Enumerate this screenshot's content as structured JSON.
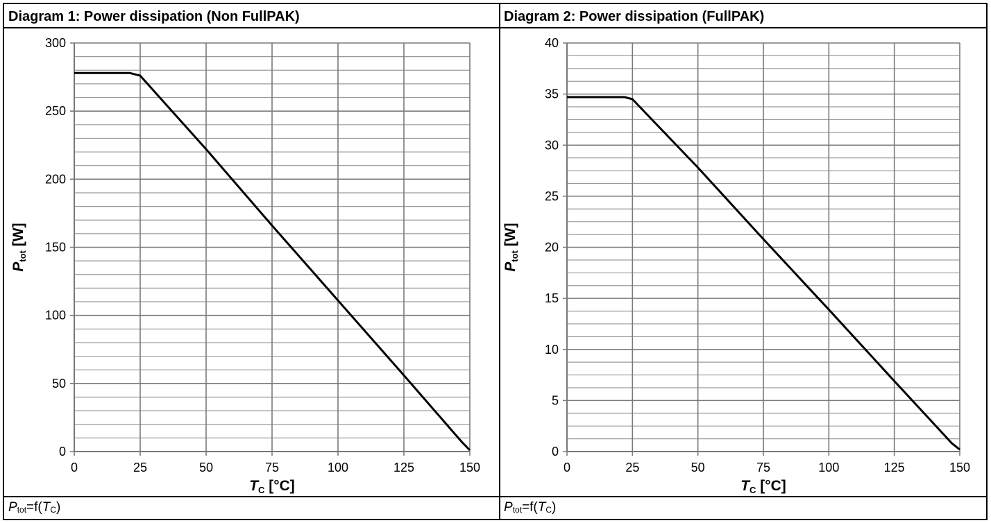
{
  "panels": [
    {
      "title": "Diagram 1: Power dissipation (Non FullPAK)",
      "caption": {
        "main": "P",
        "sub": "tot",
        "mid": "=f(",
        "var": "T",
        "varsub": "C",
        "end": ")"
      }
    },
    {
      "title": "Diagram 2: Power dissipation (FullPAK)",
      "caption": {
        "main": "P",
        "sub": "tot",
        "mid": "=f(",
        "var": "T",
        "varsub": "C",
        "end": ")"
      }
    }
  ],
  "chart_data": [
    {
      "type": "line",
      "title": "Diagram 1: Power dissipation (Non FullPAK)",
      "xlabel": {
        "main": "T",
        "sub": "C",
        "unit": " [°C]"
      },
      "ylabel": {
        "main": "P",
        "sub": "tot",
        "unit": " [W]"
      },
      "xlim": [
        0,
        150
      ],
      "ylim": [
        0,
        300
      ],
      "x_ticks": [
        0,
        25,
        50,
        75,
        100,
        125,
        150
      ],
      "y_ticks": [
        0,
        50,
        100,
        150,
        200,
        250,
        300
      ],
      "grid": true,
      "series": [
        {
          "x": [
            0,
            21,
            25,
            50,
            75,
            100,
            125,
            147,
            150
          ],
          "y": [
            278,
            278,
            276,
            222,
            166,
            111,
            56,
            7,
            1
          ]
        }
      ]
    },
    {
      "type": "line",
      "title": "Diagram 2: Power dissipation (FullPAK)",
      "xlabel": {
        "main": "T",
        "sub": "C",
        "unit": " [°C]"
      },
      "ylabel": {
        "main": "P",
        "sub": "tot",
        "unit": " [W]"
      },
      "xlim": [
        0,
        150
      ],
      "ylim": [
        0,
        40
      ],
      "x_ticks": [
        0,
        25,
        50,
        75,
        100,
        125,
        150
      ],
      "y_ticks": [
        0,
        5,
        10,
        15,
        20,
        25,
        30,
        35,
        40
      ],
      "grid": true,
      "series": [
        {
          "x": [
            0,
            22,
            25,
            50,
            75,
            100,
            125,
            147,
            150
          ],
          "y": [
            34.7,
            34.7,
            34.5,
            27.8,
            20.8,
            13.9,
            6.9,
            0.8,
            0.2
          ]
        }
      ]
    }
  ]
}
